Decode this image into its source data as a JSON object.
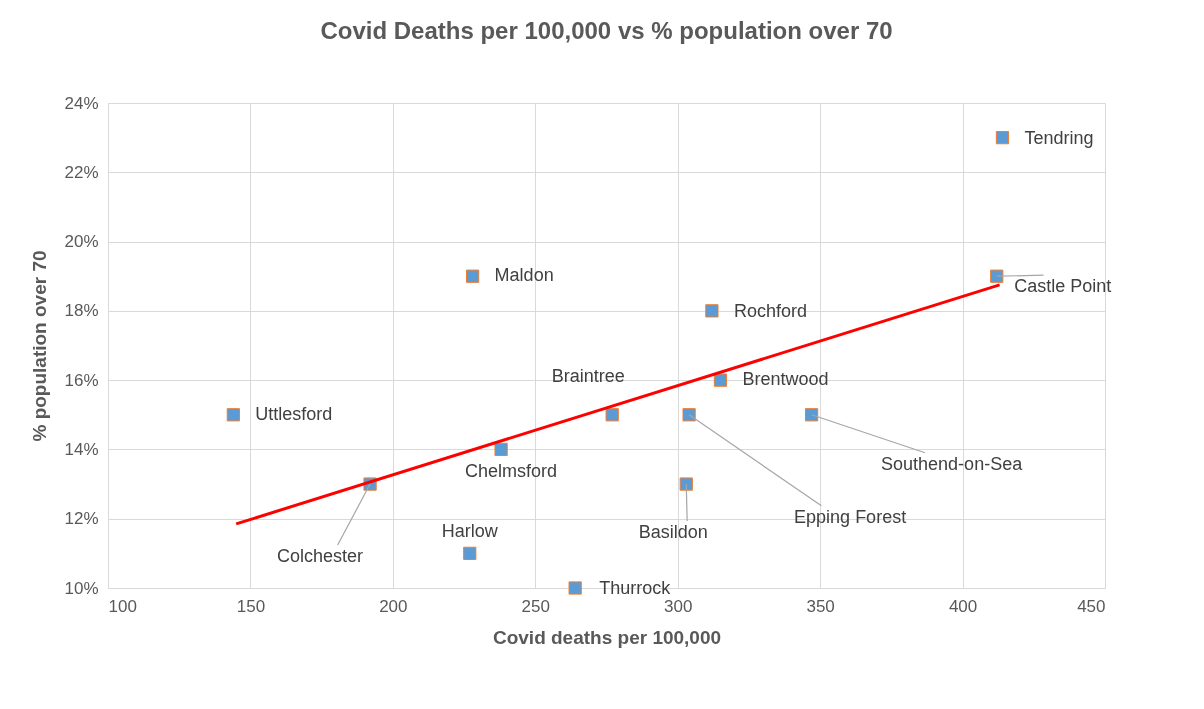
{
  "chart_data": {
    "type": "scatter",
    "title": "Covid Deaths per 100,000 vs % population over 70",
    "xlabel": "Covid deaths per 100,000",
    "ylabel": "% population over 70",
    "series": [
      {
        "color": "#5b9bd5",
        "x": [
          144,
          192,
          227,
          228,
          238,
          264,
          277,
          303,
          304,
          312,
          315,
          347,
          412,
          414
        ],
        "values": [
          15,
          13,
          11,
          19,
          14,
          10,
          15,
          13,
          15,
          18,
          16,
          15,
          19,
          23
        ]
      },
      {
        "type": "line",
        "marker": "none",
        "color": "#ff0000",
        "x": [
          145,
          413
        ],
        "values": [
          11.85,
          18.75
        ]
      }
    ],
    "marker": "square",
    "xlim": [
      100,
      450
    ],
    "xticks": [
      100,
      150,
      200,
      250,
      300,
      350,
      400,
      450
    ],
    "ylim": [
      10,
      24
    ],
    "yticks": [
      {
        "value": 10,
        "label": "10%"
      },
      {
        "value": 12,
        "label": "12%"
      },
      {
        "value": 14,
        "label": "14%"
      },
      {
        "value": 16,
        "label": "16%"
      },
      {
        "value": 18,
        "label": "18%"
      },
      {
        "value": 20,
        "label": "20%"
      },
      {
        "value": 22,
        "label": "22%"
      },
      {
        "value": 24,
        "label": "24%"
      }
    ],
    "grid": true,
    "annotations": [
      {
        "text": "Uttlesford",
        "x": 144,
        "y": 15
      },
      {
        "text": "Colchester",
        "x": 192,
        "y": 13
      },
      {
        "text": "Harlow",
        "x": 227,
        "y": 11
      },
      {
        "text": "Maldon",
        "x": 228,
        "y": 19
      },
      {
        "text": "Chelmsford",
        "x": 238,
        "y": 14
      },
      {
        "text": "Thurrock",
        "x": 264,
        "y": 10
      },
      {
        "text": "Braintree",
        "x": 277,
        "y": 15
      },
      {
        "text": "Basildon",
        "x": 303,
        "y": 13
      },
      {
        "text": "Epping Forest",
        "x": 304,
        "y": 15
      },
      {
        "text": "Rochford",
        "x": 312,
        "y": 18
      },
      {
        "text": "Brentwood",
        "x": 315,
        "y": 16
      },
      {
        "text": "Southend-on-Sea",
        "x": 347,
        "y": 15
      },
      {
        "text": "Castle Point",
        "x": 412,
        "y": 19
      },
      {
        "text": "Tendring",
        "x": 414,
        "y": 23
      }
    ]
  }
}
